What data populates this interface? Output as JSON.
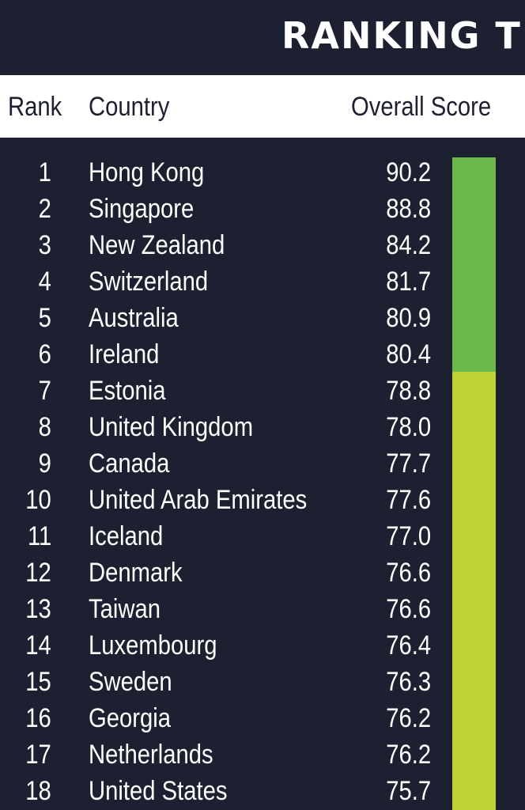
{
  "title": "RANKING T",
  "columns": {
    "rank": "Rank",
    "country": "Country",
    "score": "Overall Score"
  },
  "rows": [
    {
      "rank": "1",
      "country": "Hong Kong",
      "score": "90.2"
    },
    {
      "rank": "2",
      "country": "Singapore",
      "score": "88.8"
    },
    {
      "rank": "3",
      "country": "New Zealand",
      "score": "84.2"
    },
    {
      "rank": "4",
      "country": "Switzerland",
      "score": "81.7"
    },
    {
      "rank": "5",
      "country": "Australia",
      "score": "80.9"
    },
    {
      "rank": "6",
      "country": "Ireland",
      "score": "80.4"
    },
    {
      "rank": "7",
      "country": "Estonia",
      "score": "78.8"
    },
    {
      "rank": "8",
      "country": "United Kingdom",
      "score": "78.0"
    },
    {
      "rank": "9",
      "country": "Canada",
      "score": "77.7"
    },
    {
      "rank": "10",
      "country": "United Arab Emirates",
      "score": "77.6"
    },
    {
      "rank": "11",
      "country": "Iceland",
      "score": "77.0"
    },
    {
      "rank": "12",
      "country": "Denmark",
      "score": "76.6"
    },
    {
      "rank": "13",
      "country": "Taiwan",
      "score": "76.6"
    },
    {
      "rank": "14",
      "country": "Luxembourg",
      "score": "76.4"
    },
    {
      "rank": "15",
      "country": "Sweden",
      "score": "76.3"
    },
    {
      "rank": "16",
      "country": "Georgia",
      "score": "76.2"
    },
    {
      "rank": "17",
      "country": "Netherlands",
      "score": "76.2"
    },
    {
      "rank": "18",
      "country": "United States",
      "score": "75.7"
    }
  ],
  "score_bands": [
    {
      "from_rank": 1,
      "to_rank": 6,
      "color": "#6cb94a"
    },
    {
      "from_rank": 7,
      "to_rank": 18,
      "color": "#bed335"
    }
  ],
  "colors": {
    "background": "#1d2030",
    "header_background": "#ffffff",
    "text": "#ffffff",
    "header_text": "#1d2030"
  }
}
